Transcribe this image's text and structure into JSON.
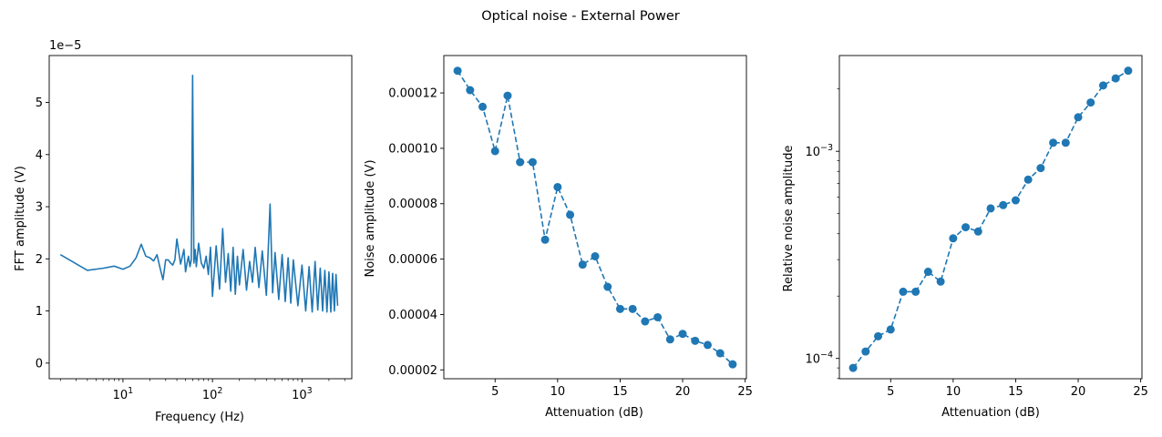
{
  "figure": {
    "title": "Optical noise - External Power"
  },
  "chart_data": [
    {
      "type": "line",
      "xlabel": "Frequency (Hz)",
      "ylabel": "FFT amplitude (V)",
      "xscale": "log",
      "xlim": [
        1.5,
        3600
      ],
      "ylim": [
        -0.3,
        5.9
      ],
      "y_offset_label": "1e−5",
      "x_major_ticks": [
        {
          "value": 10,
          "base": "10",
          "exp": "1"
        },
        {
          "value": 100,
          "base": "10",
          "exp": "2"
        },
        {
          "value": 1000,
          "base": "10",
          "exp": "3"
        }
      ],
      "y_ticks": [
        0,
        1,
        2,
        3,
        4,
        5
      ],
      "color": "#1f77b4",
      "series": [
        {
          "x": [
            2,
            4,
            6,
            8,
            10,
            12,
            14,
            16,
            18,
            20,
            22,
            24,
            26,
            28,
            30,
            32,
            34,
            36,
            38,
            40,
            44,
            48,
            50,
            52,
            54,
            56,
            58,
            60,
            62,
            64,
            66,
            70,
            75,
            80,
            85,
            90,
            95,
            100,
            110,
            120,
            130,
            140,
            150,
            160,
            170,
            180,
            190,
            200,
            220,
            240,
            260,
            280,
            300,
            330,
            360,
            400,
            440,
            470,
            500,
            550,
            600,
            650,
            700,
            750,
            800,
            900,
            1000,
            1100,
            1200,
            1300,
            1400,
            1500,
            1600,
            1700,
            1800,
            1900,
            2000,
            2100,
            2200,
            2300,
            2400,
            2500
          ],
          "y": [
            2.08,
            1.78,
            1.82,
            1.86,
            1.8,
            1.86,
            2.02,
            2.28,
            2.05,
            2.02,
            1.96,
            2.08,
            1.82,
            1.6,
            1.98,
            1.98,
            1.92,
            1.88,
            1.98,
            2.38,
            1.9,
            2.18,
            1.75,
            1.92,
            2.05,
            1.85,
            1.98,
            5.52,
            1.92,
            2.18,
            1.85,
            2.3,
            1.92,
            1.82,
            2.05,
            1.7,
            2.22,
            1.28,
            2.25,
            1.42,
            2.58,
            1.55,
            2.1,
            1.38,
            2.22,
            1.32,
            2.05,
            1.5,
            2.18,
            1.4,
            1.95,
            1.55,
            2.22,
            1.45,
            2.15,
            1.3,
            3.05,
            1.35,
            2.12,
            1.22,
            2.08,
            1.18,
            2.02,
            1.15,
            1.98,
            1.1,
            1.88,
            1.0,
            1.85,
            0.98,
            1.95,
            1.02,
            1.82,
            1.0,
            1.78,
            0.98,
            1.75,
            0.98,
            1.72,
            1.0,
            1.7,
            1.1
          ]
        }
      ]
    },
    {
      "type": "line",
      "line_style": "dashed",
      "marker": "circle",
      "xlabel": "Attenuation (dB)",
      "ylabel": "Noise amplitude (V)",
      "xlim": [
        0.9,
        25.1
      ],
      "ylim": [
        1.68e-05,
        0.0001335
      ],
      "x_ticks": [
        5,
        10,
        15,
        20,
        25
      ],
      "y_ticks": [
        2e-05,
        4e-05,
        6e-05,
        8e-05,
        0.0001,
        0.00012
      ],
      "y_tick_labels": [
        "0.00002",
        "0.00004",
        "0.00006",
        "0.00008",
        "0.00010",
        "0.00012"
      ],
      "color": "#1f77b4",
      "series": [
        {
          "x": [
            2,
            3,
            4,
            5,
            6,
            7,
            8,
            9,
            10,
            11,
            12,
            13,
            14,
            15,
            16,
            17,
            18,
            19,
            20,
            21,
            22,
            23,
            24
          ],
          "y": [
            0.000128,
            0.000121,
            0.000115,
            9.9e-05,
            0.000119,
            9.5e-05,
            9.5e-05,
            6.7e-05,
            8.6e-05,
            7.6e-05,
            5.8e-05,
            6.1e-05,
            5e-05,
            4.2e-05,
            4.2e-05,
            3.75e-05,
            3.9e-05,
            3.1e-05,
            3.3e-05,
            3.05e-05,
            2.9e-05,
            2.6e-05,
            2.2e-05
          ]
        }
      ]
    },
    {
      "type": "line",
      "line_style": "dashed",
      "marker": "circle",
      "xlabel": "Attenuation (dB)",
      "ylabel": "Relative noise amplitude",
      "yscale": "log",
      "xlim": [
        0.9,
        25.1
      ],
      "ylim": [
        7.98e-05,
        0.0029
      ],
      "x_ticks": [
        5,
        10,
        15,
        20,
        25
      ],
      "y_major_ticks": [
        {
          "value": 0.0001,
          "base": "10",
          "exp": "−4"
        },
        {
          "value": 0.001,
          "base": "10",
          "exp": "−3"
        }
      ],
      "color": "#1f77b4",
      "series": [
        {
          "x": [
            2,
            3,
            4,
            5,
            6,
            7,
            8,
            9,
            10,
            11,
            12,
            13,
            14,
            15,
            16,
            17,
            18,
            19,
            20,
            21,
            22,
            23,
            24
          ],
          "y": [
            9e-05,
            0.000108,
            0.000128,
            0.000138,
            0.00021,
            0.00021,
            0.000262,
            0.000235,
            0.00038,
            0.00043,
            0.00041,
            0.00053,
            0.00055,
            0.00058,
            0.00073,
            0.00083,
            0.0011,
            0.0011,
            0.00146,
            0.00172,
            0.00208,
            0.00225,
            0.00245
          ]
        }
      ]
    }
  ]
}
